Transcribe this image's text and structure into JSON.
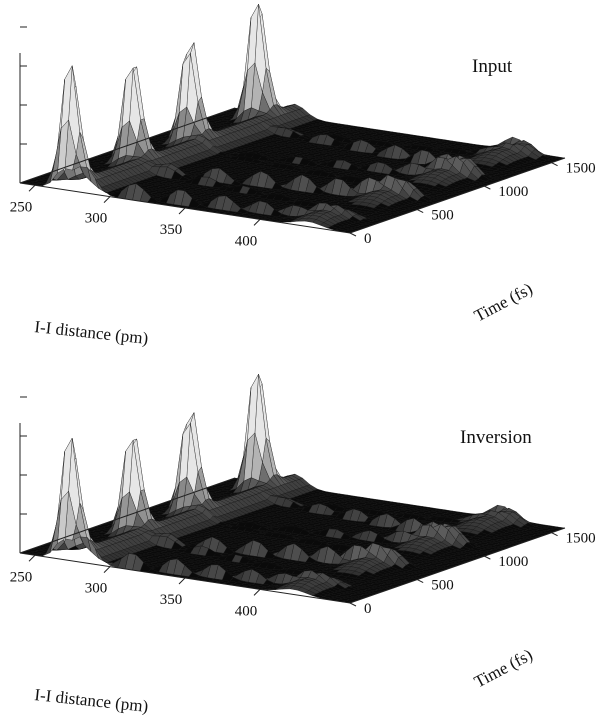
{
  "chart_data": [
    {
      "type": "surface",
      "title": "Input",
      "xlabel": "I-I distance (pm)",
      "ylabel": "Time (fs)",
      "x_ticks": [
        250,
        300,
        350,
        400
      ],
      "y_ticks": [
        0,
        500,
        1000,
        1500
      ],
      "xlim": [
        240,
        460
      ],
      "ylim": [
        0,
        1600
      ],
      "peaks_at_x_near_270": [
        {
          "time_fs": 60,
          "amplitude": 1.0
        },
        {
          "time_fs": 520,
          "amplitude": 0.86
        },
        {
          "time_fs": 950,
          "amplitude": 0.86
        },
        {
          "time_fs": 1450,
          "amplitude": 1.0
        }
      ],
      "outer_turning_point_pm": 440,
      "grid": false
    },
    {
      "type": "surface",
      "title": "Inversion",
      "xlabel": "I-I distance (pm)",
      "ylabel": "Time (fs)",
      "x_ticks": [
        250,
        300,
        350,
        400
      ],
      "y_ticks": [
        0,
        500,
        1000,
        1500
      ],
      "xlim": [
        240,
        460
      ],
      "ylim": [
        0,
        1600
      ],
      "peaks_at_x_near_270": [
        {
          "time_fs": 60,
          "amplitude": 0.98
        },
        {
          "time_fs": 520,
          "amplitude": 0.84
        },
        {
          "time_fs": 950,
          "amplitude": 0.86
        },
        {
          "time_fs": 1450,
          "amplitude": 1.0
        }
      ],
      "outer_turning_point_pm": 430,
      "grid": false
    }
  ]
}
